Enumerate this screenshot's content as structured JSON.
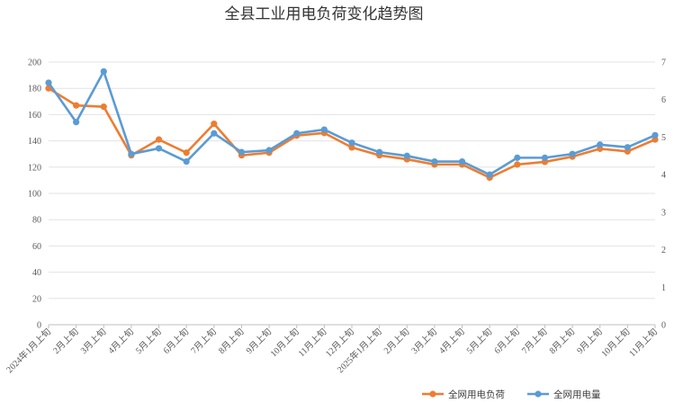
{
  "chart_data": {
    "type": "line",
    "title": "全县工业用电负荷变化趋势图",
    "categories": [
      "2024年1月上旬",
      "2月上旬",
      "3月上旬",
      "4月上旬",
      "5月上旬",
      "6月上旬",
      "7月上旬",
      "8月上旬",
      "9月上旬",
      "10月上旬",
      "11月上旬",
      "12月上旬",
      "2025年1月上旬",
      "2月上旬",
      "3月上旬",
      "4月上旬",
      "5月上旬",
      "6月上旬",
      "7月上旬",
      "8月上旬",
      "9月上旬",
      "10月上旬",
      "11月上旬"
    ],
    "y_left": {
      "min": 0,
      "max": 200,
      "step": 20,
      "ticks": [
        "0",
        "20",
        "40",
        "60",
        "80",
        "100",
        "120",
        "140",
        "160",
        "180",
        "200"
      ]
    },
    "y_right": {
      "min": 0,
      "max": 7,
      "step": 1,
      "ticks": [
        "0",
        "1",
        "2",
        "3",
        "4",
        "5",
        "6",
        "7"
      ]
    },
    "grid": true,
    "legend_position": "bottom-right",
    "series": [
      {
        "name": "全网用电负荷",
        "axis": "left",
        "color": "#ED7D31",
        "values": [
          180,
          167,
          166,
          129,
          141,
          131,
          153,
          129,
          131,
          144,
          146,
          135,
          129,
          126,
          122,
          122,
          112,
          122,
          124,
          128,
          134,
          132,
          141
        ]
      },
      {
        "name": "全网用电量",
        "axis": "right",
        "color": "#5B9BD5",
        "values": [
          6.45,
          5.4,
          6.75,
          4.55,
          4.7,
          4.35,
          5.1,
          4.6,
          4.65,
          5.1,
          5.2,
          4.85,
          4.6,
          4.5,
          4.35,
          4.35,
          4.0,
          4.45,
          4.45,
          4.55,
          4.8,
          4.73,
          5.05
        ]
      }
    ]
  }
}
